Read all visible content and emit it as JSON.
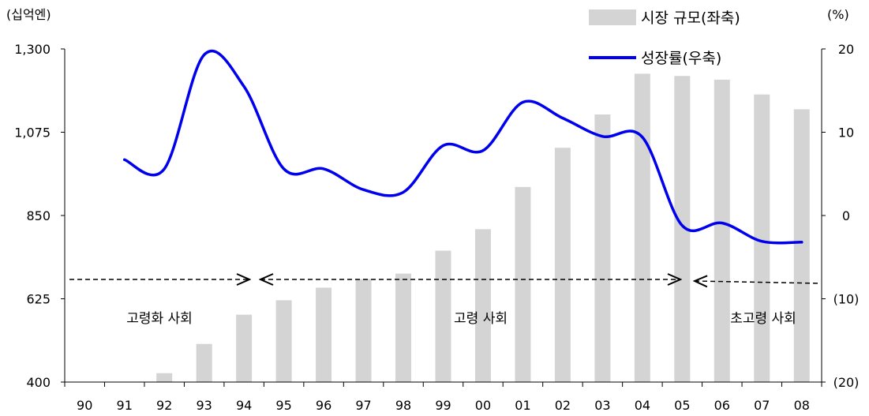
{
  "chart_data": {
    "type": "bar+line",
    "categories": [
      "90",
      "91",
      "92",
      "93",
      "94",
      "95",
      "96",
      "97",
      "98",
      "99",
      "00",
      "01",
      "02",
      "03",
      "04",
      "05",
      "06",
      "07",
      "08"
    ],
    "left_unit": "(십억엔)",
    "right_unit": "(%)",
    "left_axis": {
      "ylim": [
        400,
        1300
      ],
      "ticks": [
        "400",
        "625",
        "850",
        "1,075",
        "1,300"
      ]
    },
    "right_axis": {
      "ylim": [
        -20,
        20
      ],
      "ticks": [
        "(20)",
        "(10)",
        "0",
        "10",
        "20"
      ]
    },
    "series": [
      {
        "name": "시장 규모(좌축)",
        "kind": "bar",
        "axis": "left",
        "color": "#d4d4d4",
        "values": [
          385,
          390,
          424,
          503,
          582,
          621,
          655,
          678,
          693,
          755,
          813,
          927,
          1033,
          1123,
          1233,
          1227,
          1217,
          1177,
          1137
        ]
      },
      {
        "name": "성장률(우축)",
        "kind": "line",
        "axis": "right",
        "color": "#0000ee",
        "values": [
          null,
          6.7,
          5.6,
          19.3,
          15.5,
          5.6,
          5.6,
          3.1,
          2.8,
          8.4,
          7.8,
          13.6,
          11.7,
          9.5,
          9.4,
          -1.2,
          -0.9,
          -3.1,
          -3.2
        ]
      }
    ],
    "legend_position": "top-right",
    "periods": [
      {
        "label": "고령화 사회",
        "arrow": "right"
      },
      {
        "label": "고령 사회",
        "arrow": "both"
      },
      {
        "label": "초고령 사회",
        "arrow": "left"
      }
    ],
    "grid": false
  }
}
